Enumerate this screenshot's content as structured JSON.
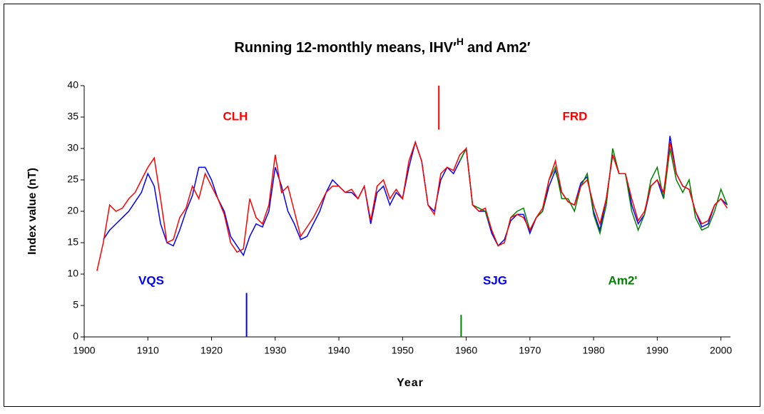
{
  "chart_data": {
    "type": "line",
    "title": [
      "Running 12-monthly means, IHV′",
      "H",
      "and Am2′"
    ],
    "x_label": "Year",
    "y_label": "Index value (nT)",
    "xlim": [
      1900,
      2001.5
    ],
    "ylim": [
      0,
      40
    ],
    "xticks": [
      1900,
      1910,
      1920,
      1930,
      1940,
      1950,
      1960,
      1970,
      1980,
      1990,
      2000
    ],
    "yticks": [
      0,
      5,
      10,
      15,
      20,
      25,
      30,
      35,
      40
    ],
    "grid": false,
    "x": [
      1902,
      1903,
      1904,
      1905,
      1906,
      1907,
      1908,
      1909,
      1910,
      1911,
      1912,
      1913,
      1914,
      1915,
      1916,
      1917,
      1918,
      1919,
      1920,
      1921,
      1922,
      1923,
      1924,
      1925,
      1926,
      1927,
      1928,
      1929,
      1930,
      1931,
      1932,
      1933,
      1934,
      1935,
      1936,
      1937,
      1938,
      1939,
      1940,
      1941,
      1942,
      1943,
      1944,
      1945,
      1946,
      1947,
      1948,
      1949,
      1950,
      1951,
      1952,
      1953,
      1954,
      1955,
      1956,
      1957,
      1958,
      1959,
      1960,
      1961,
      1962,
      1963,
      1964,
      1965,
      1966,
      1967,
      1968,
      1969,
      1970,
      1971,
      1972,
      1973,
      1974,
      1975,
      1976,
      1977,
      1978,
      1979,
      1980,
      1981,
      1982,
      1983,
      1984,
      1985,
      1986,
      1987,
      1988,
      1989,
      1990,
      1991,
      1992,
      1993,
      1994,
      1995,
      1996,
      1997,
      1998,
      1999,
      2000,
      2001
    ],
    "series": [
      {
        "color": "#0000ff",
        "values": [
          null,
          15.5,
          17,
          18,
          19,
          20,
          21.5,
          23,
          26,
          24,
          18,
          15,
          14.5,
          17,
          20,
          22.5,
          27,
          27,
          25,
          22,
          20,
          16,
          14.5,
          13,
          16,
          18,
          17.5,
          20,
          27,
          24,
          20,
          18,
          15.5,
          16,
          18,
          20,
          23,
          25,
          24,
          23,
          23,
          22,
          24,
          18,
          23,
          24,
          21,
          23,
          22,
          27,
          31,
          28,
          21,
          20,
          25,
          27,
          26,
          28,
          30,
          21,
          20,
          20,
          16.5,
          14.5,
          15.5,
          18.5,
          19.5,
          19.5,
          16.5,
          19,
          20,
          24,
          26.5,
          23,
          21.5,
          21,
          24.5,
          25.5,
          20,
          17,
          22,
          29,
          26,
          26,
          21,
          18,
          19.5,
          24,
          25,
          22,
          32,
          26,
          24,
          23.5,
          20,
          17.5,
          18,
          21,
          22,
          21
        ]
      },
      {
        "color": "#008000",
        "values": [
          null,
          null,
          null,
          null,
          null,
          null,
          null,
          null,
          null,
          null,
          null,
          null,
          null,
          null,
          null,
          null,
          null,
          null,
          null,
          null,
          null,
          null,
          null,
          null,
          null,
          null,
          null,
          null,
          null,
          null,
          null,
          null,
          null,
          null,
          null,
          null,
          null,
          null,
          null,
          null,
          null,
          null,
          null,
          null,
          null,
          null,
          null,
          null,
          null,
          null,
          null,
          null,
          null,
          null,
          null,
          null,
          null,
          28,
          30,
          21,
          20.5,
          20,
          17,
          14.5,
          15,
          19,
          20,
          20.5,
          17,
          19,
          20,
          25,
          27,
          22,
          22,
          20,
          24,
          26,
          19.5,
          16.5,
          21,
          30,
          26,
          26,
          20,
          17,
          19.5,
          25,
          27,
          22,
          30,
          25,
          23,
          25,
          19,
          17,
          17.5,
          20,
          23.5,
          21
        ]
      },
      {
        "color": "#ff0000",
        "values": [
          10.5,
          15,
          21,
          20,
          20.5,
          22,
          23,
          25,
          27,
          28.5,
          22,
          15,
          15.5,
          19,
          20.5,
          24,
          22,
          26,
          24,
          22,
          19.5,
          15,
          13.5,
          14,
          22,
          19,
          18,
          21,
          29,
          23,
          24,
          20,
          16,
          17.5,
          19,
          21,
          23,
          24,
          24,
          23,
          23.5,
          22,
          24,
          18.5,
          24,
          25,
          22,
          23.5,
          22,
          28,
          31,
          28,
          21,
          19.5,
          26,
          27,
          26.5,
          29,
          30,
          21,
          20,
          20.5,
          17,
          14.5,
          15,
          19,
          19.5,
          19,
          17,
          19,
          20.5,
          25,
          28,
          23,
          21.5,
          21,
          24,
          25,
          21,
          18,
          22,
          29,
          26,
          26,
          22,
          18.5,
          20,
          24,
          25,
          23,
          31,
          26,
          24,
          23.5,
          20,
          18,
          18.5,
          21,
          22,
          20.5
        ]
      }
    ],
    "annotations": [
      {
        "text": "CLH",
        "color": "#ff0000"
      },
      {
        "text": "FRD",
        "color": "#ff0000"
      },
      {
        "text": "VQS",
        "color": "#0000ff"
      },
      {
        "text": "SJG",
        "color": "#0000ff"
      },
      {
        "text": "Am2'",
        "color": "#008000"
      }
    ],
    "markers": [
      {
        "x": 1955.7,
        "y": [
          33,
          40
        ],
        "color": "#ff0000"
      },
      {
        "x": 1925.5,
        "y": [
          0,
          7
        ],
        "color": "#0000ff"
      },
      {
        "x": 1959.2,
        "y": [
          0,
          3.5
        ],
        "color": "#008000"
      }
    ]
  }
}
